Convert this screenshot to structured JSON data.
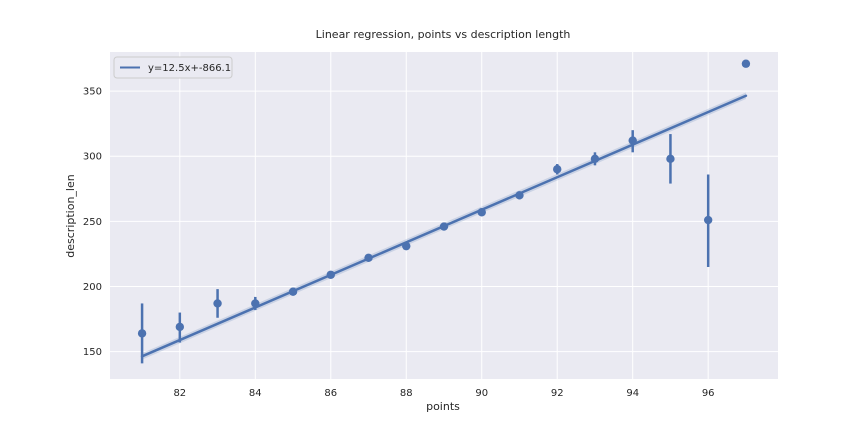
{
  "colors": {
    "plot_background": "#eaeaf2",
    "grid": "#ffffff",
    "series": "#4c72b0",
    "text": "#262626"
  },
  "chart_data": {
    "type": "scatter",
    "title": "Linear regression, points vs description length",
    "xlabel": "points",
    "ylabel": "description_len",
    "xlim": [
      80.15,
      97.85
    ],
    "ylim": [
      129,
      380
    ],
    "xticks": [
      82,
      84,
      86,
      88,
      90,
      92,
      94,
      96
    ],
    "yticks": [
      150,
      200,
      250,
      300,
      350
    ],
    "grid": true,
    "legend": {
      "placement": "top-left",
      "entries": [
        "y=12.5x+-866.1"
      ]
    },
    "points": [
      {
        "x": 81,
        "y": 164,
        "ci": [
          141,
          187
        ]
      },
      {
        "x": 82,
        "y": 169,
        "ci": [
          157,
          180
        ]
      },
      {
        "x": 83,
        "y": 187,
        "ci": [
          176,
          198
        ]
      },
      {
        "x": 84,
        "y": 187,
        "ci": [
          182,
          192
        ]
      },
      {
        "x": 85,
        "y": 196,
        "ci": [
          193,
          199
        ]
      },
      {
        "x": 86,
        "y": 209,
        "ci": [
          207,
          211
        ]
      },
      {
        "x": 87,
        "y": 222,
        "ci": [
          220,
          224
        ]
      },
      {
        "x": 88,
        "y": 231,
        "ci": [
          229,
          233
        ]
      },
      {
        "x": 89,
        "y": 246,
        "ci": [
          244,
          248
        ]
      },
      {
        "x": 90,
        "y": 257,
        "ci": [
          255,
          259
        ]
      },
      {
        "x": 91,
        "y": 270,
        "ci": [
          267,
          273
        ]
      },
      {
        "x": 92,
        "y": 290,
        "ci": [
          286,
          294
        ]
      },
      {
        "x": 93,
        "y": 298,
        "ci": [
          293,
          303
        ]
      },
      {
        "x": 94,
        "y": 312,
        "ci": [
          303,
          320
        ]
      },
      {
        "x": 95,
        "y": 298,
        "ci": [
          279,
          317
        ]
      },
      {
        "x": 96,
        "y": 251,
        "ci": [
          215,
          286
        ]
      },
      {
        "x": 97,
        "y": 371,
        "ci": [
          371,
          371
        ]
      }
    ],
    "regression": {
      "slope": 12.5,
      "intercept": -866.1,
      "x_range": [
        81,
        97
      ]
    }
  }
}
